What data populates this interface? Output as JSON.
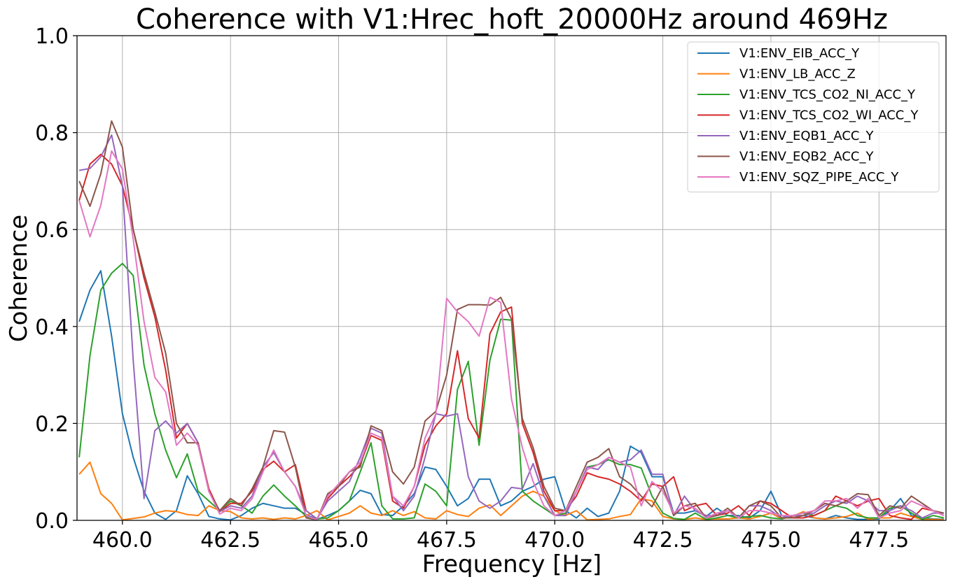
{
  "chart_data": {
    "type": "line",
    "title": "Coherence with V1:Hrec_hoft_20000Hz around 469Hz",
    "xlabel": "Frequency [Hz]",
    "ylabel": "Coherence",
    "xlim": [
      458.95,
      479.05
    ],
    "ylim": [
      0.0,
      1.0
    ],
    "x_ticks": [
      460.0,
      462.5,
      465.0,
      467.5,
      470.0,
      472.5,
      475.0,
      477.5
    ],
    "x_tick_labels": [
      "460.0",
      "462.5",
      "465.0",
      "467.5",
      "470.0",
      "472.5",
      "475.0",
      "477.5"
    ],
    "y_ticks": [
      0.0,
      0.2,
      0.4,
      0.6,
      0.8,
      1.0
    ],
    "y_tick_labels": [
      "0.0",
      "0.2",
      "0.4",
      "0.6",
      "0.8",
      "1.0"
    ],
    "grid": true,
    "legend_position": "top-right",
    "x": [
      459.0,
      459.25,
      459.5,
      459.75,
      460.0,
      460.25,
      460.5,
      460.75,
      461.0,
      461.25,
      461.5,
      461.75,
      462.0,
      462.25,
      462.5,
      462.75,
      463.0,
      463.25,
      463.5,
      463.75,
      464.0,
      464.25,
      464.5,
      464.75,
      465.0,
      465.25,
      465.5,
      465.75,
      466.0,
      466.25,
      466.5,
      466.75,
      467.0,
      467.25,
      467.5,
      467.75,
      468.0,
      468.25,
      468.5,
      468.75,
      469.0,
      469.25,
      469.5,
      469.75,
      470.0,
      470.25,
      470.5,
      470.75,
      471.0,
      471.25,
      471.5,
      471.75,
      472.0,
      472.25,
      472.5,
      472.75,
      473.0,
      473.25,
      473.5,
      473.75,
      474.0,
      474.25,
      474.5,
      474.75,
      475.0,
      475.25,
      475.5,
      475.75,
      476.0,
      476.25,
      476.5,
      476.75,
      477.0,
      477.25,
      477.5,
      477.75,
      478.0,
      478.25,
      478.5,
      478.75,
      479.0
    ],
    "series": [
      {
        "name": "V1:ENV_EIB_ACC_Y",
        "color": "#1f77b4",
        "values": [
          0.41,
          0.475,
          0.515,
          0.38,
          0.22,
          0.13,
          0.06,
          0.015,
          0.002,
          0.02,
          0.092,
          0.055,
          0.008,
          0.003,
          0.001,
          0.01,
          0.025,
          0.035,
          0.03,
          0.025,
          0.025,
          0.012,
          0.002,
          0.01,
          0.02,
          0.04,
          0.062,
          0.055,
          0.012,
          0.01,
          0.03,
          0.055,
          0.11,
          0.105,
          0.07,
          0.03,
          0.045,
          0.085,
          0.085,
          0.03,
          0.04,
          0.06,
          0.07,
          0.085,
          0.09,
          0.02,
          0.005,
          0.025,
          0.008,
          0.015,
          0.06,
          0.153,
          0.14,
          0.09,
          0.09,
          0.015,
          0.015,
          0.02,
          0.008,
          0.025,
          0.01,
          0.01,
          0.005,
          0.02,
          0.06,
          0.01,
          0.005,
          0.01,
          0.005,
          0.003,
          0.01,
          0.005,
          0.002,
          0.002,
          0.003,
          0.02,
          0.045,
          0.01,
          0.005,
          0.003,
          0.002
        ]
      },
      {
        "name": "V1:ENV_LB_ACC_Z",
        "color": "#ff7f0e",
        "values": [
          0.095,
          0.12,
          0.055,
          0.035,
          0.001,
          0.004,
          0.007,
          0.015,
          0.02,
          0.018,
          0.012,
          0.01,
          0.03,
          0.02,
          0.018,
          0.005,
          0.003,
          0.005,
          0.002,
          0.005,
          0.003,
          0.01,
          0.02,
          0.001,
          0.008,
          0.015,
          0.03,
          0.015,
          0.01,
          0.02,
          0.01,
          0.018,
          0.005,
          0.003,
          0.02,
          0.012,
          0.008,
          0.025,
          0.032,
          0.01,
          0.03,
          0.05,
          0.06,
          0.05,
          0.02,
          0.01,
          0.02,
          0.001,
          0.002,
          0.003,
          0.008,
          0.012,
          0.045,
          0.04,
          0.008,
          0.003,
          0.002,
          0.005,
          0.002,
          0.003,
          0.003,
          0.005,
          0.003,
          0.008,
          0.015,
          0.003,
          0.008,
          0.018,
          0.005,
          0.003,
          0.005,
          0.008,
          0.015,
          0.002,
          0.005,
          0.005,
          0.015,
          0.008,
          0.002,
          0.002,
          0.001
        ]
      },
      {
        "name": "V1:ENV_TCS_CO2_NI_ACC_Y",
        "color": "#2ca02c",
        "values": [
          0.13,
          0.34,
          0.475,
          0.51,
          0.53,
          0.505,
          0.32,
          0.22,
          0.145,
          0.088,
          0.137,
          0.06,
          0.04,
          0.02,
          0.04,
          0.03,
          0.015,
          0.05,
          0.073,
          0.05,
          0.03,
          0.008,
          0.003,
          0.005,
          0.02,
          0.04,
          0.1,
          0.16,
          0.03,
          0.003,
          0.003,
          0.005,
          0.075,
          0.06,
          0.03,
          0.27,
          0.328,
          0.155,
          0.33,
          0.415,
          0.413,
          0.06,
          0.04,
          0.025,
          0.01,
          0.015,
          0.06,
          0.11,
          0.115,
          0.125,
          0.115,
          0.115,
          0.108,
          0.05,
          0.015,
          0.004,
          0.002,
          0.015,
          0.002,
          0.005,
          0.01,
          0.005,
          0.008,
          0.01,
          0.005,
          0.003,
          0.01,
          0.015,
          0.01,
          0.02,
          0.03,
          0.025,
          0.01,
          0.005,
          0.005,
          0.025,
          0.03,
          0.015,
          0.002,
          0.01,
          0.005
        ]
      },
      {
        "name": "V1:ENV_TCS_CO2_WI_ACC_Y",
        "color": "#d62728",
        "values": [
          0.66,
          0.735,
          0.755,
          0.735,
          0.69,
          0.6,
          0.5,
          0.42,
          0.31,
          0.17,
          0.2,
          0.16,
          0.065,
          0.018,
          0.035,
          0.035,
          0.06,
          0.105,
          0.122,
          0.1,
          0.115,
          0.02,
          0.003,
          0.045,
          0.07,
          0.09,
          0.115,
          0.175,
          0.165,
          0.04,
          0.025,
          0.07,
          0.155,
          0.195,
          0.22,
          0.35,
          0.21,
          0.17,
          0.385,
          0.43,
          0.44,
          0.2,
          0.14,
          0.06,
          0.02,
          0.02,
          0.05,
          0.098,
          0.09,
          0.085,
          0.075,
          0.06,
          0.04,
          0.075,
          0.07,
          0.09,
          0.02,
          0.03,
          0.035,
          0.01,
          0.015,
          0.03,
          0.01,
          0.04,
          0.035,
          0.02,
          0.005,
          0.005,
          0.01,
          0.02,
          0.05,
          0.04,
          0.03,
          0.04,
          0.045,
          0.01,
          0.005,
          0.002,
          0.025,
          0.02,
          0.01
        ]
      },
      {
        "name": "V1:ENV_EQB1_ACC_Y",
        "color": "#9467bd",
        "values": [
          0.722,
          0.726,
          0.75,
          0.795,
          0.69,
          0.33,
          0.045,
          0.185,
          0.205,
          0.18,
          0.2,
          0.16,
          0.06,
          0.018,
          0.03,
          0.025,
          0.05,
          0.11,
          0.14,
          0.1,
          0.07,
          0.02,
          0.003,
          0.04,
          0.06,
          0.08,
          0.13,
          0.19,
          0.18,
          0.05,
          0.02,
          0.05,
          0.13,
          0.22,
          0.215,
          0.22,
          0.09,
          0.04,
          0.025,
          0.04,
          0.068,
          0.065,
          0.117,
          0.05,
          0.01,
          0.01,
          0.06,
          0.11,
          0.105,
          0.13,
          0.12,
          0.125,
          0.145,
          0.095,
          0.095,
          0.01,
          0.05,
          0.02,
          0.01,
          0.01,
          0.02,
          0.005,
          0.03,
          0.03,
          0.02,
          0.005,
          0.01,
          0.01,
          0.015,
          0.03,
          0.04,
          0.035,
          0.05,
          0.04,
          0.02,
          0.02,
          0.03,
          0.02,
          0.005,
          0.015,
          0.015
        ]
      },
      {
        "name": "V1:ENV_EQB2_ACC_Y",
        "color": "#8c564b",
        "values": [
          0.7,
          0.648,
          0.715,
          0.824,
          0.77,
          0.6,
          0.51,
          0.43,
          0.345,
          0.2,
          0.16,
          0.16,
          0.06,
          0.02,
          0.045,
          0.03,
          0.065,
          0.11,
          0.185,
          0.182,
          0.11,
          0.005,
          0.001,
          0.055,
          0.07,
          0.1,
          0.11,
          0.195,
          0.185,
          0.1,
          0.075,
          0.11,
          0.205,
          0.225,
          0.3,
          0.435,
          0.445,
          0.445,
          0.444,
          0.46,
          0.415,
          0.21,
          0.15,
          0.07,
          0.025,
          0.02,
          0.07,
          0.12,
          0.13,
          0.148,
          0.09,
          0.075,
          0.05,
          0.028,
          0.07,
          0.01,
          0.03,
          0.035,
          0.005,
          0.01,
          0.025,
          0.005,
          0.03,
          0.04,
          0.03,
          0.005,
          0.005,
          0.01,
          0.02,
          0.035,
          0.03,
          0.04,
          0.055,
          0.053,
          0.01,
          0.03,
          0.025,
          0.05,
          0.035,
          0.02,
          0.015
        ]
      },
      {
        "name": "V1:ENV_SQZ_PIPE_ACC_Y",
        "color": "#e377c2",
        "values": [
          0.66,
          0.585,
          0.65,
          0.762,
          0.725,
          0.58,
          0.41,
          0.295,
          0.265,
          0.155,
          0.18,
          0.155,
          0.06,
          0.013,
          0.025,
          0.02,
          0.045,
          0.1,
          0.145,
          0.1,
          0.07,
          0.01,
          0.001,
          0.05,
          0.075,
          0.1,
          0.12,
          0.18,
          0.17,
          0.05,
          0.03,
          0.07,
          0.17,
          0.22,
          0.458,
          0.43,
          0.41,
          0.38,
          0.46,
          0.45,
          0.25,
          0.15,
          0.08,
          0.03,
          0.01,
          0.02,
          0.06,
          0.105,
          0.115,
          0.13,
          0.12,
          0.11,
          0.03,
          0.08,
          0.06,
          0.015,
          0.03,
          0.025,
          0.005,
          0.015,
          0.02,
          0.005,
          0.02,
          0.02,
          0.015,
          0.01,
          0.01,
          0.015,
          0.02,
          0.04,
          0.04,
          0.045,
          0.025,
          0.045,
          0.005,
          0.015,
          0.02,
          0.04,
          0.03,
          0.02,
          0.01
        ]
      }
    ]
  }
}
